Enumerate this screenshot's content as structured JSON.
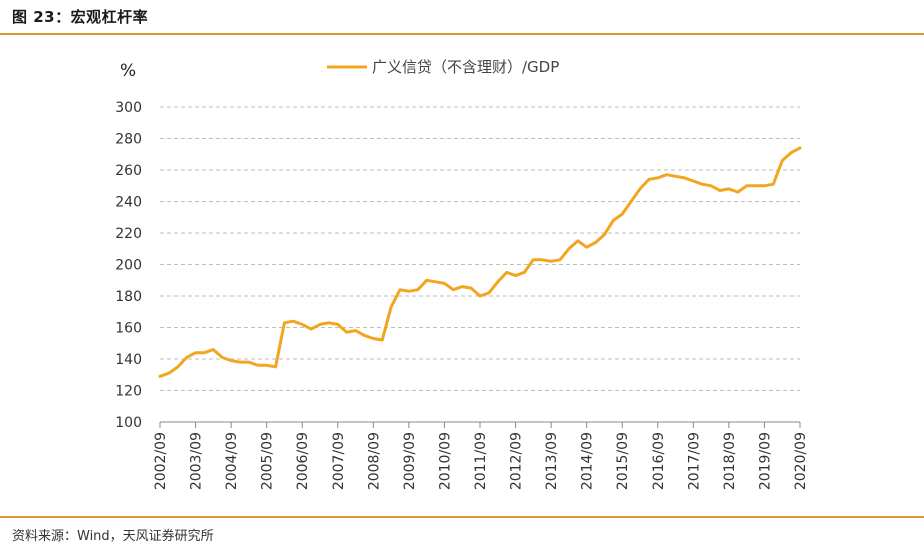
{
  "figure": {
    "title": "图 23：宏观杠杆率",
    "source": "资料来源：Wind，天风证券研究所"
  },
  "chart_data": {
    "type": "line",
    "title": "",
    "unit_label": "%",
    "xlabel": "",
    "ylabel": "",
    "ylim": [
      100,
      300
    ],
    "yticks": [
      100,
      120,
      140,
      160,
      180,
      200,
      220,
      240,
      260,
      280,
      300
    ],
    "grid": true,
    "legend_position": "top-center",
    "x_tick_labels": [
      "2002/09",
      "2003/09",
      "2004/09",
      "2005/09",
      "2006/09",
      "2007/09",
      "2008/09",
      "2009/09",
      "2010/09",
      "2011/09",
      "2012/09",
      "2013/09",
      "2014/09",
      "2015/09",
      "2016/09",
      "2017/09",
      "2018/09",
      "2019/09",
      "2020/09"
    ],
    "colors": {
      "line": "#f2a51e",
      "grid": "#bdbdbd",
      "axis": "#888888",
      "rule": "#d79a36"
    },
    "series": [
      {
        "name": "广义信贷（不含理财）/GDP",
        "x": [
          "2002/09",
          "2002/12",
          "2003/03",
          "2003/06",
          "2003/09",
          "2003/12",
          "2004/03",
          "2004/06",
          "2004/09",
          "2004/12",
          "2005/03",
          "2005/06",
          "2005/09",
          "2005/12",
          "2006/03",
          "2006/06",
          "2006/09",
          "2006/12",
          "2007/03",
          "2007/06",
          "2007/09",
          "2007/12",
          "2008/03",
          "2008/06",
          "2008/09",
          "2008/12",
          "2009/03",
          "2009/06",
          "2009/09",
          "2009/12",
          "2010/03",
          "2010/06",
          "2010/09",
          "2010/12",
          "2011/03",
          "2011/06",
          "2011/09",
          "2011/12",
          "2012/03",
          "2012/06",
          "2012/09",
          "2012/12",
          "2013/03",
          "2013/06",
          "2013/09",
          "2013/12",
          "2014/03",
          "2014/06",
          "2014/09",
          "2014/12",
          "2015/03",
          "2015/06",
          "2015/09",
          "2015/12",
          "2016/03",
          "2016/06",
          "2016/09",
          "2016/12",
          "2017/03",
          "2017/06",
          "2017/09",
          "2017/12",
          "2018/03",
          "2018/06",
          "2018/09",
          "2018/12",
          "2019/03",
          "2019/06",
          "2019/09",
          "2019/12",
          "2020/03",
          "2020/06",
          "2020/09"
        ],
        "values": [
          129,
          131,
          135,
          141,
          144,
          144,
          146,
          141,
          139,
          138,
          138,
          136,
          136,
          135,
          163,
          164,
          162,
          159,
          162,
          163,
          162,
          157,
          158,
          155,
          153,
          152,
          173,
          184,
          183,
          184,
          190,
          189,
          188,
          184,
          186,
          185,
          180,
          182,
          189,
          195,
          193,
          195,
          203,
          203,
          202,
          203,
          210,
          215,
          211,
          214,
          219,
          228,
          232,
          240,
          248,
          254,
          255,
          257,
          256,
          255,
          253,
          251,
          250,
          247,
          248,
          246,
          250,
          250,
          250,
          251,
          266,
          271,
          274
        ]
      }
    ]
  }
}
